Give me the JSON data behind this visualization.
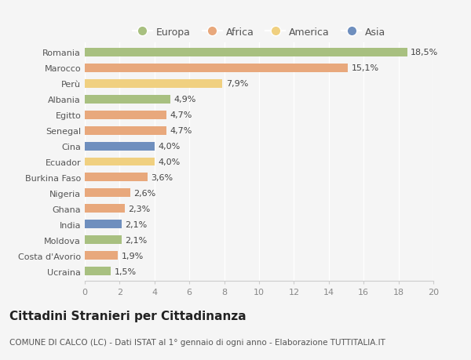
{
  "countries": [
    "Romania",
    "Marocco",
    "Perù",
    "Albania",
    "Egitto",
    "Senegal",
    "Cina",
    "Ecuador",
    "Burkina Faso",
    "Nigeria",
    "Ghana",
    "India",
    "Moldova",
    "Costa d'Avorio",
    "Ucraina"
  ],
  "values": [
    18.5,
    15.1,
    7.9,
    4.9,
    4.7,
    4.7,
    4.0,
    4.0,
    3.6,
    2.6,
    2.3,
    2.1,
    2.1,
    1.9,
    1.5
  ],
  "labels": [
    "18,5%",
    "15,1%",
    "7,9%",
    "4,9%",
    "4,7%",
    "4,7%",
    "4,0%",
    "4,0%",
    "3,6%",
    "2,6%",
    "2,3%",
    "2,1%",
    "2,1%",
    "1,9%",
    "1,5%"
  ],
  "continents": [
    "Europa",
    "Africa",
    "America",
    "Europa",
    "Africa",
    "Africa",
    "Asia",
    "America",
    "Africa",
    "Africa",
    "Africa",
    "Asia",
    "Europa",
    "Africa",
    "Europa"
  ],
  "colors": {
    "Europa": "#a8c080",
    "Africa": "#e8a87c",
    "America": "#f0d080",
    "Asia": "#6f8fbe"
  },
  "legend_order": [
    "Europa",
    "Africa",
    "America",
    "Asia"
  ],
  "xlim": [
    0,
    20
  ],
  "xticks": [
    0,
    2,
    4,
    6,
    8,
    10,
    12,
    14,
    16,
    18,
    20
  ],
  "title": "Cittadini Stranieri per Cittadinanza",
  "subtitle": "COMUNE DI CALCO (LC) - Dati ISTAT al 1° gennaio di ogni anno - Elaborazione TUTTITALIA.IT",
  "background_color": "#f5f5f5",
  "bar_height": 0.55,
  "label_fontsize": 8,
  "tick_fontsize": 8,
  "title_fontsize": 11,
  "subtitle_fontsize": 7.5
}
